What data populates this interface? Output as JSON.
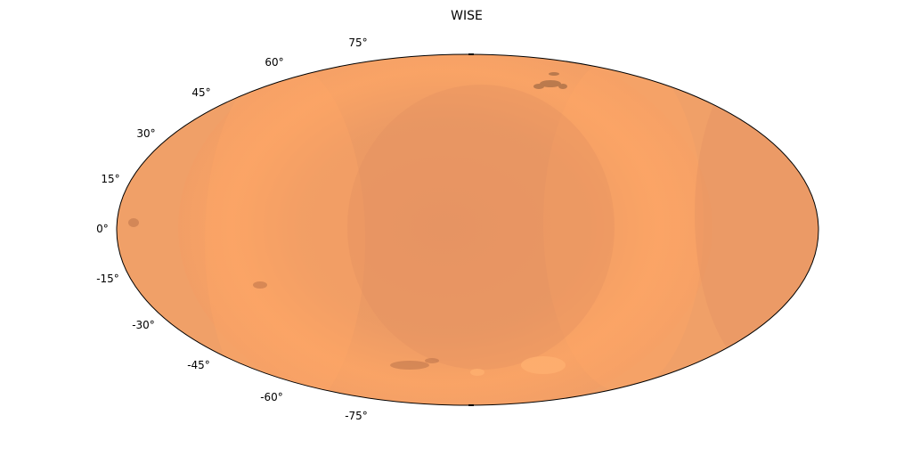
{
  "title": "WISE",
  "projection": "aitoff",
  "latitude_labels": [
    "75°",
    "60°",
    "45°",
    "30°",
    "15°",
    "0°",
    "-15°",
    "-30°",
    "-45°",
    "-60°",
    "-75°"
  ],
  "colors": {
    "map_fill": "#f0a068",
    "map_bright": "#ffa566",
    "map_dark": "#e59363",
    "outline": "#000000",
    "background": "#ffffff"
  }
}
